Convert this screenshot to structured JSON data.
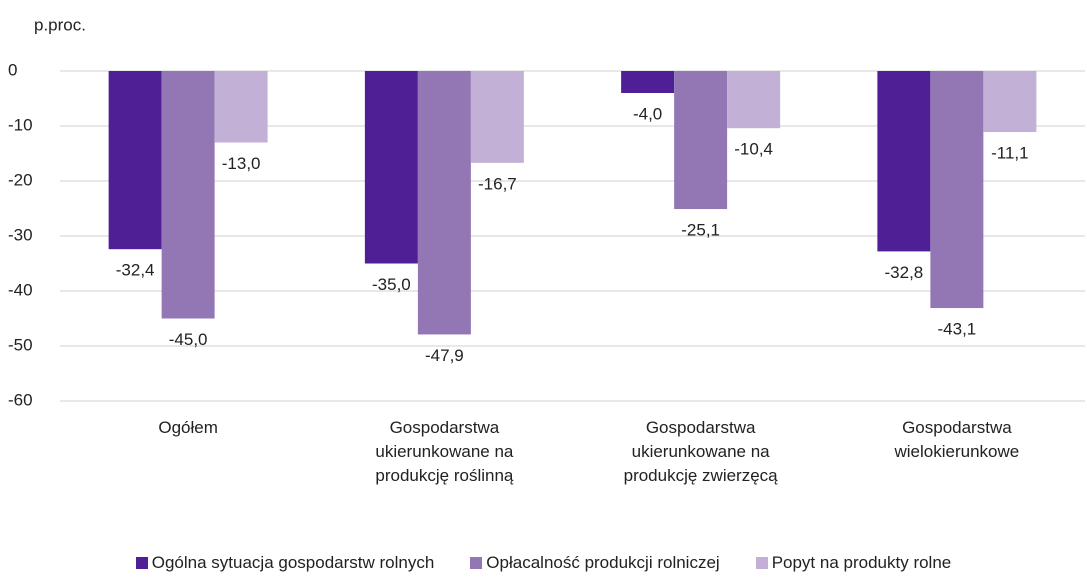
{
  "chart_data": {
    "type": "bar",
    "y_label": "p.proc.",
    "categories": [
      "Ogółem",
      "Gospodarstwa ukierunkowane na produkcję roślinną",
      "Gospodarstwa ukierunkowane na produkcję zwierzęcą",
      "Gospodarstwa wielokierunkowe"
    ],
    "series": [
      {
        "name": "Ogólna sytuacja gospodarstw rolnych",
        "color": "#4f1f96",
        "values": [
          -32.4,
          -35.0,
          -4.0,
          -32.8
        ],
        "value_labels": [
          "-32,4",
          "-35,0",
          "-4,0",
          "-32,8"
        ]
      },
      {
        "name": "Opłacalność produkcji rolniczej",
        "color": "#9377b5",
        "values": [
          -45.0,
          -47.9,
          -25.1,
          -43.1
        ],
        "value_labels": [
          "-45,0",
          "-47,9",
          "-25,1",
          "-43,1"
        ]
      },
      {
        "name": "Popyt na produkty rolne",
        "color": "#c2b0d6",
        "values": [
          -13.0,
          -16.7,
          -10.4,
          -11.1
        ],
        "value_labels": [
          "-13,0",
          "-16,7",
          "-10,4",
          "-11,1"
        ]
      }
    ],
    "ylim": [
      -60,
      0
    ],
    "yticks": [
      0,
      -10,
      -20,
      -30,
      -40,
      -50,
      -60
    ],
    "grid": true
  }
}
